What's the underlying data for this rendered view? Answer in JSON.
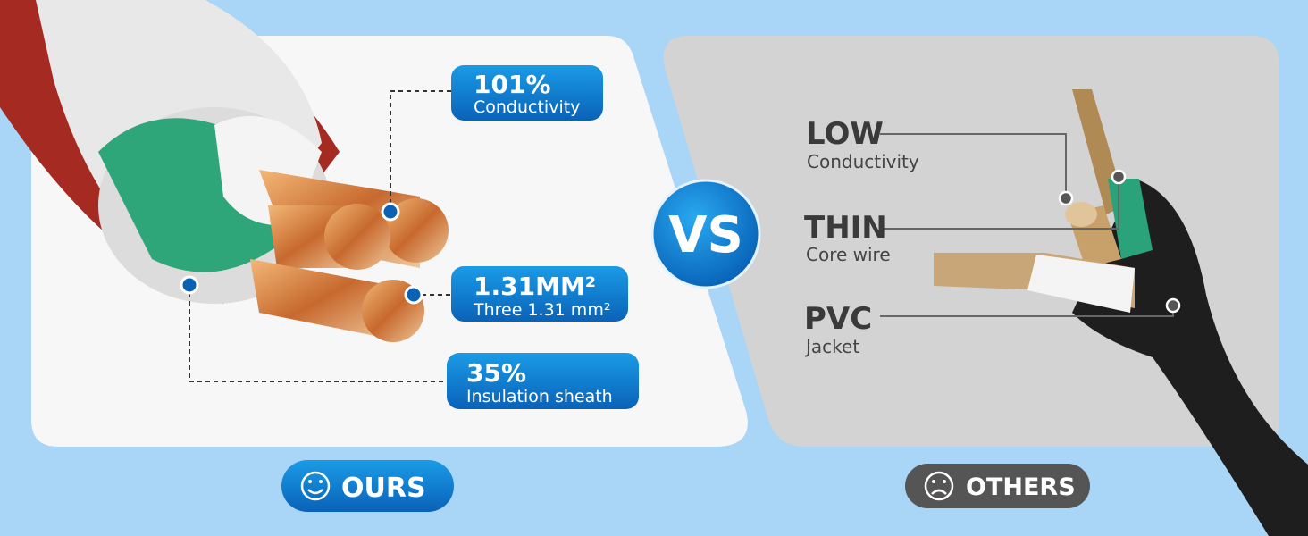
{
  "ours": {
    "label": "OURS",
    "callouts": [
      {
        "headline": "101%",
        "caption": "Conductivity"
      },
      {
        "headline": "1.31MM²",
        "caption": "Three 1.31 mm²"
      },
      {
        "headline": "35%",
        "caption": "Insulation sheath"
      }
    ]
  },
  "vs": "VS",
  "others": {
    "label": "OTHERS",
    "callouts": [
      {
        "headline": "LOW",
        "caption": "Conductivity"
      },
      {
        "headline": "THIN",
        "caption": "Core wire"
      },
      {
        "headline": "PVC",
        "caption": "Jacket"
      }
    ]
  }
}
